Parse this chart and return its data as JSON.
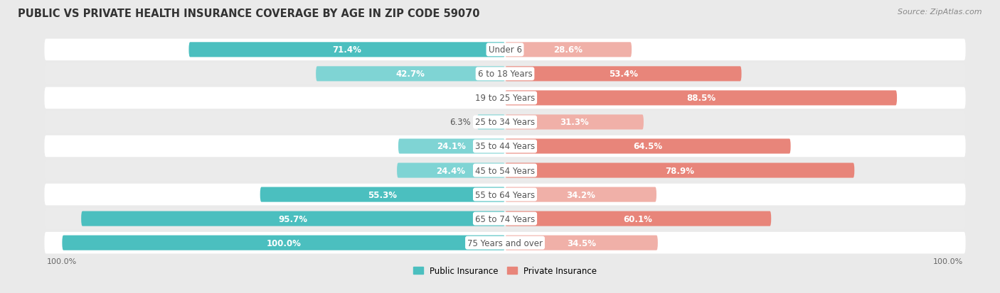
{
  "title": "PUBLIC VS PRIVATE HEALTH INSURANCE COVERAGE BY AGE IN ZIP CODE 59070",
  "source": "Source: ZipAtlas.com",
  "categories": [
    "Under 6",
    "6 to 18 Years",
    "19 to 25 Years",
    "25 to 34 Years",
    "35 to 44 Years",
    "45 to 54 Years",
    "55 to 64 Years",
    "65 to 74 Years",
    "75 Years and over"
  ],
  "public_values": [
    71.4,
    42.7,
    0.0,
    6.3,
    24.1,
    24.4,
    55.3,
    95.7,
    100.0
  ],
  "private_values": [
    28.6,
    53.4,
    88.5,
    31.3,
    64.5,
    78.9,
    34.2,
    60.1,
    34.5
  ],
  "public_color": "#4BBFBF",
  "public_color_light": "#7FD4D4",
  "private_color": "#E8857A",
  "private_color_light": "#F0B0A8",
  "background_color": "#EAEAEA",
  "row_bg_even": "#FFFFFF",
  "row_bg_odd": "#EBEBEB",
  "title_fontsize": 10.5,
  "label_fontsize": 8.5,
  "source_fontsize": 8,
  "bar_height": 0.62,
  "axis_label_color": "#666666",
  "center_box_color": "#FFFFFF",
  "cat_label_color": "#555555"
}
